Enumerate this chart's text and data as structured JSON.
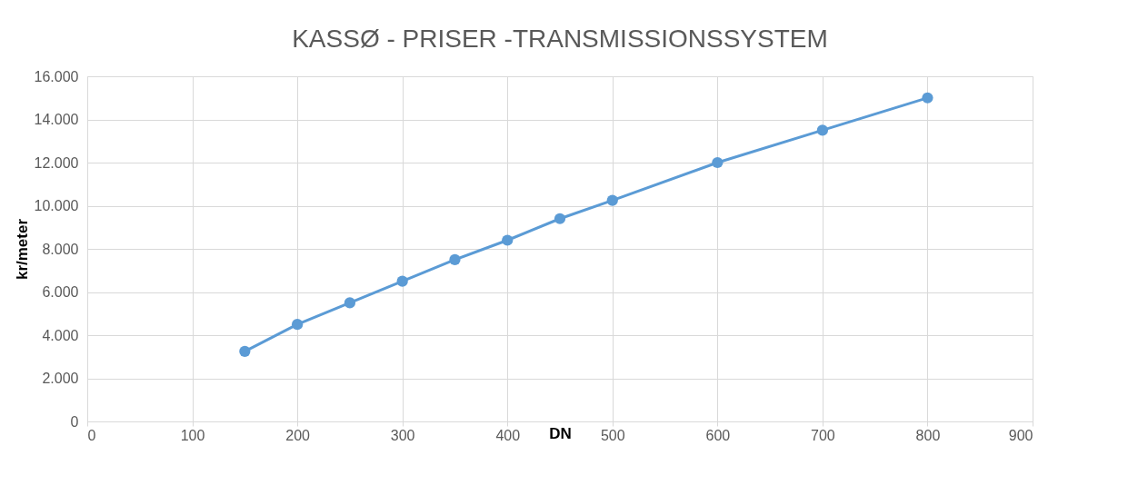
{
  "chart_data": {
    "type": "line",
    "title": "KASSØ  - PRISER -TRANSMISSIONSSYSTEM",
    "xlabel": "DN",
    "ylabel": "kr/meter",
    "x": [
      150,
      200,
      250,
      300,
      350,
      400,
      450,
      500,
      600,
      700,
      800
    ],
    "series": [
      {
        "color": "#5b9bd5",
        "values": [
          3250,
          4500,
          5500,
          6500,
          7500,
          8400,
          9400,
          10250,
          12000,
          13500,
          15000
        ]
      }
    ],
    "xlim": [
      0,
      900
    ],
    "xticks": [
      0,
      100,
      200,
      300,
      400,
      500,
      600,
      700,
      800,
      900
    ],
    "ylim": [
      0,
      16000
    ],
    "yticks": [
      0,
      {
        "value": 2000,
        "label": "2.000"
      },
      {
        "value": 4000,
        "label": "4.000"
      },
      {
        "value": 6000,
        "label": "6.000"
      },
      {
        "value": 8000,
        "label": "8.000"
      },
      {
        "value": 10000,
        "label": "10.000"
      },
      {
        "value": 12000,
        "label": "12.000"
      },
      {
        "value": 14000,
        "label": "14.000"
      },
      {
        "value": 16000,
        "label": "16.000"
      }
    ],
    "grid": true,
    "marker": "circle",
    "line_style": "solid"
  }
}
